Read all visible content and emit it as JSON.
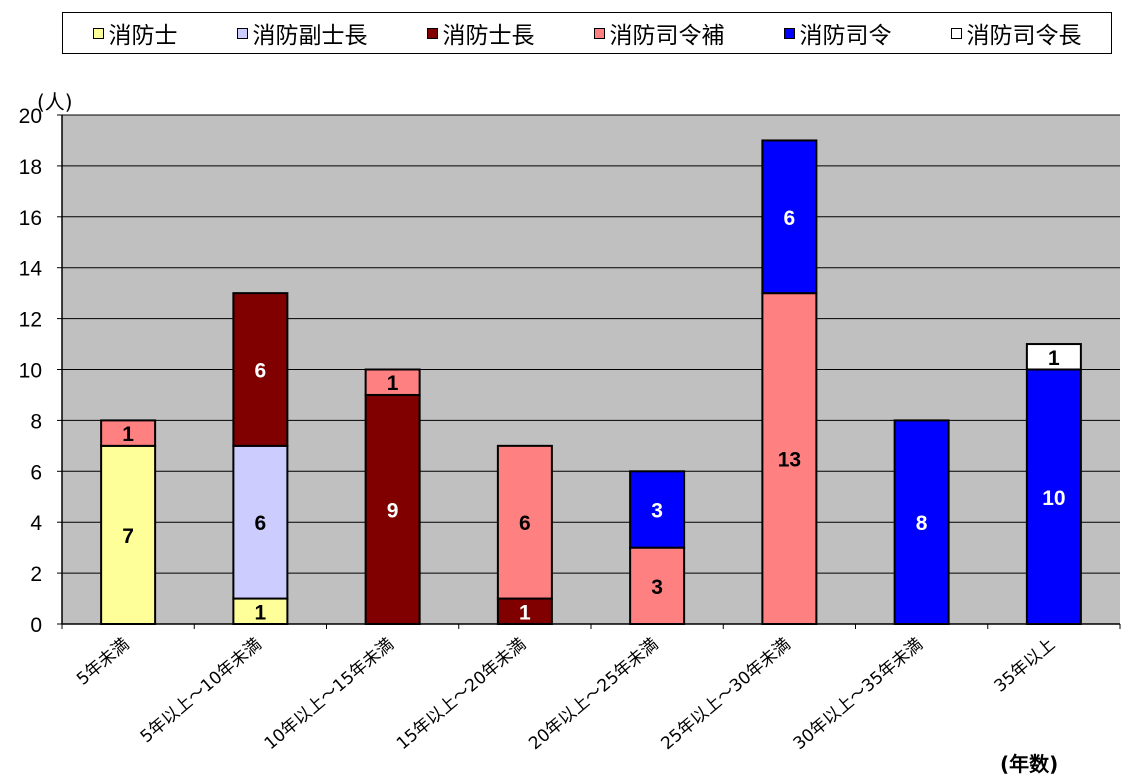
{
  "chart_data": {
    "type": "bar",
    "stacked": true,
    "categories": [
      "5年未満",
      "5年以上～10年未満",
      "10年以上～15年未満",
      "15年以上～20年未満",
      "20年以上～25年未満",
      "25年以上～30年未満",
      "30年以上～35年未満",
      "35年以上"
    ],
    "series": [
      {
        "name": "消防士",
        "color": "#ffff99",
        "values": [
          7,
          1,
          0,
          0,
          0,
          0,
          0,
          0
        ]
      },
      {
        "name": "消防副士長",
        "color": "#ccccff",
        "values": [
          0,
          6,
          0,
          0,
          0,
          0,
          0,
          0
        ]
      },
      {
        "name": "消防士長",
        "color": "#800000",
        "values": [
          0,
          6,
          9,
          1,
          0,
          0,
          0,
          0
        ]
      },
      {
        "name": "消防司令補",
        "color": "#ff8080",
        "values": [
          1,
          0,
          1,
          6,
          3,
          13,
          0,
          0
        ]
      },
      {
        "name": "消防司令",
        "color": "#0000ff",
        "values": [
          0,
          0,
          0,
          0,
          3,
          6,
          8,
          10
        ]
      },
      {
        "name": "消防司令長",
        "color": "#ffffff",
        "values": [
          0,
          0,
          0,
          0,
          0,
          0,
          0,
          1
        ]
      }
    ],
    "ylim": [
      0,
      20
    ],
    "yticks": [
      0,
      2,
      4,
      6,
      8,
      10,
      12,
      14,
      16,
      18,
      20
    ],
    "ylabel": "(人)",
    "xlabel": "(年数)",
    "grid": true,
    "legend": "top",
    "plot_background": "#c0c0c0"
  }
}
